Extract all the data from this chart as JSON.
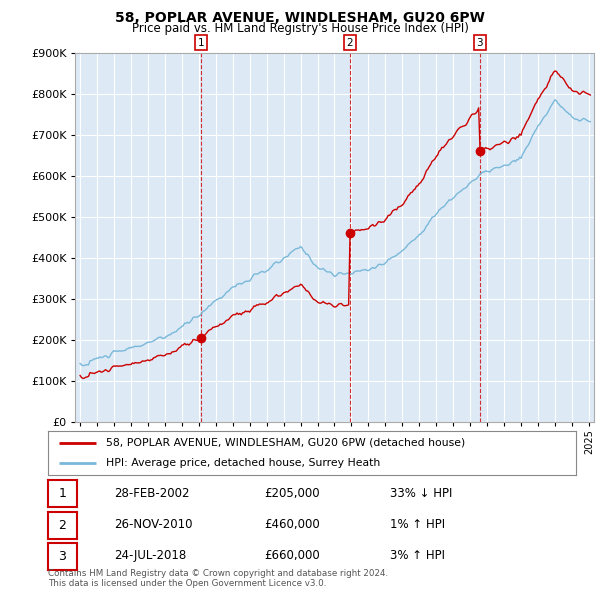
{
  "title": "58, POPLAR AVENUE, WINDLESHAM, GU20 6PW",
  "subtitle": "Price paid vs. HM Land Registry's House Price Index (HPI)",
  "legend_line1": "58, POPLAR AVENUE, WINDLESHAM, GU20 6PW (detached house)",
  "legend_line2": "HPI: Average price, detached house, Surrey Heath",
  "table": [
    {
      "num": "1",
      "date": "28-FEB-2002",
      "price": "£205,000",
      "hpi": "33% ↓ HPI"
    },
    {
      "num": "2",
      "date": "26-NOV-2010",
      "price": "£460,000",
      "hpi": "1% ↑ HPI"
    },
    {
      "num": "3",
      "date": "24-JUL-2018",
      "price": "£660,000",
      "hpi": "3% ↑ HPI"
    }
  ],
  "footer": "Contains HM Land Registry data © Crown copyright and database right 2024.\nThis data is licensed under the Open Government Licence v3.0.",
  "sale_years": [
    2002.12,
    2010.91,
    2018.56
  ],
  "sale_prices": [
    205000,
    460000,
    660000
  ],
  "hpi_color": "#7ab8d9",
  "price_color": "#cc0000",
  "bg_color": "#ddeaf6",
  "ylim": [
    0,
    900000
  ],
  "xlim_start": 1994.7,
  "xlim_end": 2025.3
}
